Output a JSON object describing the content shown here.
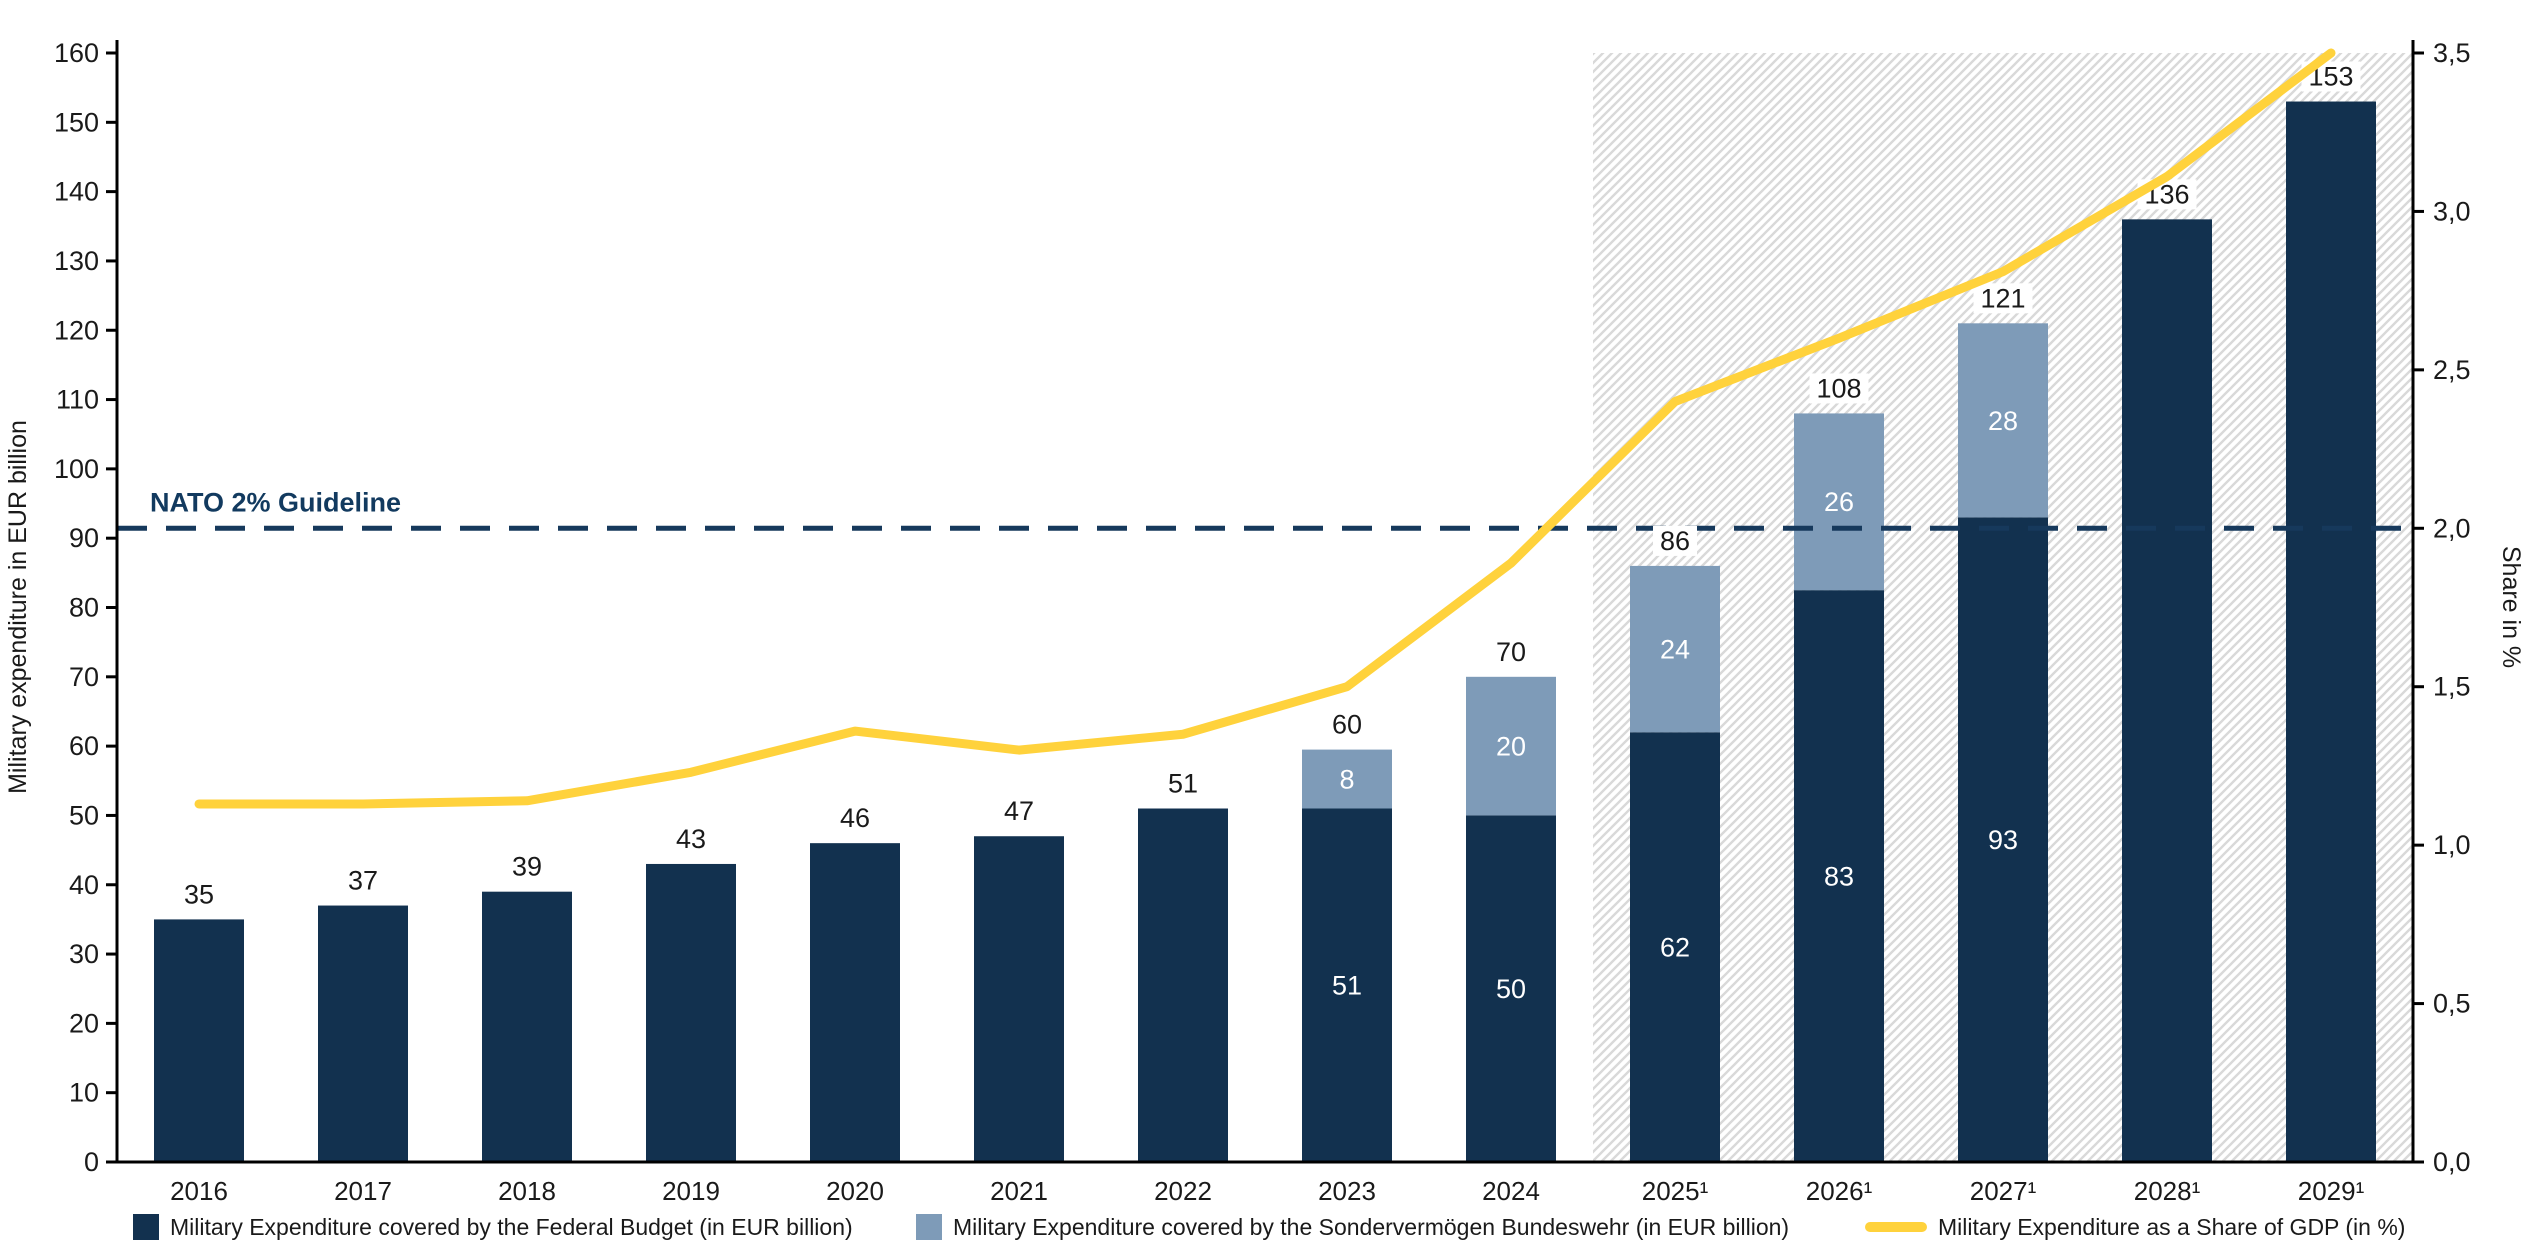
{
  "chart_data": {
    "type": "combo-stacked-bar-line",
    "categories": [
      "2016",
      "2017",
      "2018",
      "2019",
      "2020",
      "2021",
      "2022",
      "2023",
      "2024",
      "2025¹",
      "2026¹",
      "2027¹",
      "2028¹",
      "2029¹"
    ],
    "series": [
      {
        "name": "Military Expenditure covered by the Federal Budget (in EUR billion)",
        "type": "bar",
        "color": "#12314F",
        "values": [
          35,
          37,
          39,
          43,
          46,
          47,
          51,
          51,
          50,
          62,
          82.5,
          93,
          136,
          153
        ],
        "inside_labels": [
          null,
          null,
          null,
          null,
          null,
          null,
          null,
          "51",
          "50",
          "62",
          "83",
          "93",
          null,
          null
        ]
      },
      {
        "name": "Military Expenditure covered by the Sondervermögen Bundeswehr (in EUR billion)",
        "type": "bar",
        "color": "#7E9BB8",
        "values": [
          0,
          0,
          0,
          0,
          0,
          0,
          0,
          8.5,
          20,
          24,
          25.5,
          28,
          0,
          0
        ],
        "inside_labels": [
          null,
          null,
          null,
          null,
          null,
          null,
          null,
          "8",
          "20",
          "24",
          "26",
          "28",
          null,
          null
        ]
      },
      {
        "name": "Military Expenditure as a Share of GDP (in %)",
        "type": "line",
        "axis": "right",
        "color": "#FFD23C",
        "values": [
          1.13,
          1.13,
          1.14,
          1.23,
          1.36,
          1.3,
          1.35,
          1.5,
          1.89,
          2.4,
          2.6,
          2.81,
          3.11,
          3.5
        ]
      }
    ],
    "total_labels": [
      "35",
      "37",
      "39",
      "43",
      "46",
      "47",
      "51",
      "60",
      "70",
      "86",
      "108",
      "121",
      "136",
      "153"
    ],
    "left_axis": {
      "label": "Military expenditure in EUR billion",
      "min": 0,
      "max": 160,
      "ticks": [
        {
          "v": 0,
          "label": "0"
        },
        {
          "v": 10,
          "label": "10"
        },
        {
          "v": 20,
          "label": "20"
        },
        {
          "v": 30,
          "label": "30"
        },
        {
          "v": 40,
          "label": "40"
        },
        {
          "v": 50,
          "label": "50"
        },
        {
          "v": 60,
          "label": "60"
        },
        {
          "v": 70,
          "label": "70"
        },
        {
          "v": 80,
          "label": "80"
        },
        {
          "v": 90,
          "label": "90"
        },
        {
          "v": 100,
          "label": "100"
        },
        {
          "v": 110,
          "label": "110"
        },
        {
          "v": 120,
          "label": "120"
        },
        {
          "v": 130,
          "label": "130"
        },
        {
          "v": 140,
          "label": "140"
        },
        {
          "v": 150,
          "label": "150"
        },
        {
          "v": 160,
          "label": "160"
        }
      ]
    },
    "right_axis": {
      "label": "Share in %",
      "min": 0,
      "max": 3.5,
      "ticks": [
        {
          "v": 0,
          "label": "0,0"
        },
        {
          "v": 0.5,
          "label": "0,5"
        },
        {
          "v": 1,
          "label": "1,0"
        },
        {
          "v": 1.5,
          "label": "1,5"
        },
        {
          "v": 2,
          "label": "2,0"
        },
        {
          "v": 2.5,
          "label": "2,5"
        },
        {
          "v": 3,
          "label": "3,0"
        },
        {
          "v": 3.5,
          "label": "3,5"
        }
      ]
    },
    "guideline": {
      "label": "NATO 2% Guideline",
      "value": 2.0,
      "color": "#16395C",
      "text_color": "#123A5F"
    },
    "forecast": {
      "start_index": 9,
      "hatch_color": "#D9D9D9"
    },
    "grid": false,
    "text_color": "#1a1a1a",
    "axis_color": "#000000"
  },
  "legend": [
    {
      "label": "Military Expenditure covered by the Federal Budget (in EUR billion)",
      "color": "#12314F",
      "kind": "square"
    },
    {
      "label": "Military Expenditure covered by the Sondervermögen Bundeswehr (in EUR billion)",
      "color": "#7E9BB8",
      "kind": "square"
    },
    {
      "label": "Military Expenditure as a Share of GDP (in %)",
      "color": "#FFD23C",
      "kind": "line"
    }
  ]
}
